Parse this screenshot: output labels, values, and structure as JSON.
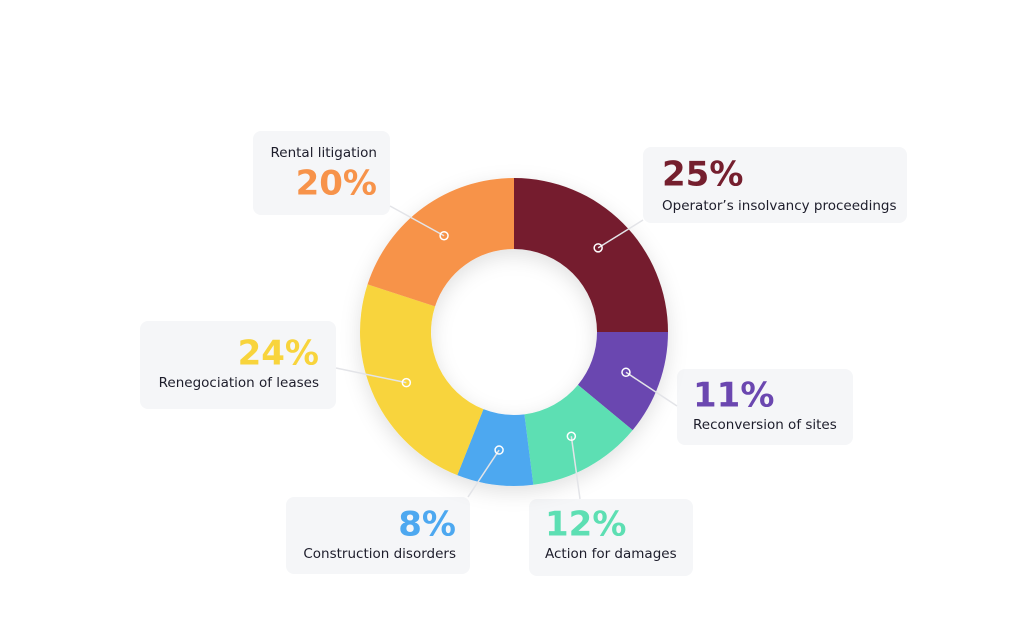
{
  "chart_data": {
    "type": "pie",
    "donut": true,
    "categories": [
      "Operator’s insolvancy proceedings",
      "Reconversion of sites",
      "Action for damages",
      "Construction disorders",
      "Renegociation of leases",
      "Rental litigation"
    ],
    "values": [
      25,
      11,
      12,
      8,
      24,
      20
    ],
    "value_labels": [
      "25%",
      "11%",
      "12%",
      "8%",
      "24%",
      "20%"
    ],
    "colors": [
      "#751f2e",
      "#6b47b0",
      "#5ddfb3",
      "#4da8f0",
      "#f8d43c",
      "#f7934a"
    ]
  }
}
